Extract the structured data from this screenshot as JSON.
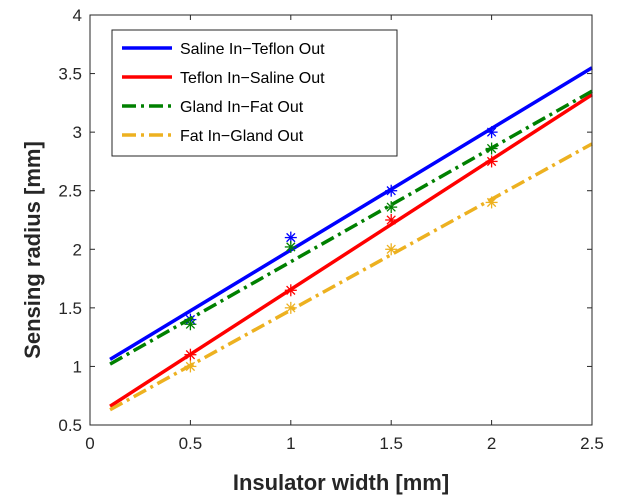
{
  "chart_data": {
    "type": "line",
    "title": "",
    "xlabel": "Insulator width [mm]",
    "ylabel": "Sensing radius [mm]",
    "xlim": [
      0,
      2.5
    ],
    "ylim": [
      0.5,
      4
    ],
    "xticks": [
      0,
      0.5,
      1,
      1.5,
      2,
      2.5
    ],
    "xtick_labels": [
      "0",
      "0.5",
      "1",
      "1.5",
      "2",
      "2.5"
    ],
    "yticks": [
      0.5,
      1,
      1.5,
      2,
      2.5,
      3,
      3.5,
      4
    ],
    "ytick_labels": [
      "0.5",
      "1",
      "1.5",
      "2",
      "2.5",
      "3",
      "3.5",
      "4"
    ],
    "grid": false,
    "legend_position": "top-left",
    "series": [
      {
        "name": "Saline In−Teflon Out",
        "color": "#0000ff",
        "line_style": "solid",
        "marker": "asterisk",
        "fit_x": [
          0.1,
          2.5
        ],
        "fit_y": [
          1.06,
          3.55
        ],
        "points_x": [
          0.5,
          1,
          1.5,
          2
        ],
        "points_y": [
          1.4,
          2.1,
          2.5,
          3.0
        ]
      },
      {
        "name": "Teflon In−Saline Out",
        "color": "#ff0000",
        "line_style": "solid",
        "marker": "asterisk",
        "fit_x": [
          0.1,
          2.5
        ],
        "fit_y": [
          0.66,
          3.32
        ],
        "points_x": [
          0.5,
          1,
          1.5,
          2
        ],
        "points_y": [
          1.1,
          1.65,
          2.25,
          2.75
        ]
      },
      {
        "name": "Gland In−Fat Out",
        "color": "#008000",
        "line_style": "dashdot",
        "marker": "asterisk",
        "fit_x": [
          0.1,
          2.5
        ],
        "fit_y": [
          1.02,
          3.35
        ],
        "points_x": [
          0.5,
          1,
          1.5,
          2
        ],
        "points_y": [
          1.36,
          2.02,
          2.36,
          2.86
        ]
      },
      {
        "name": "Fat In−Gland Out",
        "color": "#edb120",
        "line_style": "dashdot",
        "marker": "asterisk",
        "fit_x": [
          0.1,
          2.5
        ],
        "fit_y": [
          0.63,
          2.9
        ],
        "points_x": [
          0.5,
          1,
          1.5,
          2
        ],
        "points_y": [
          1.0,
          1.5,
          2.0,
          2.4
        ]
      }
    ]
  }
}
